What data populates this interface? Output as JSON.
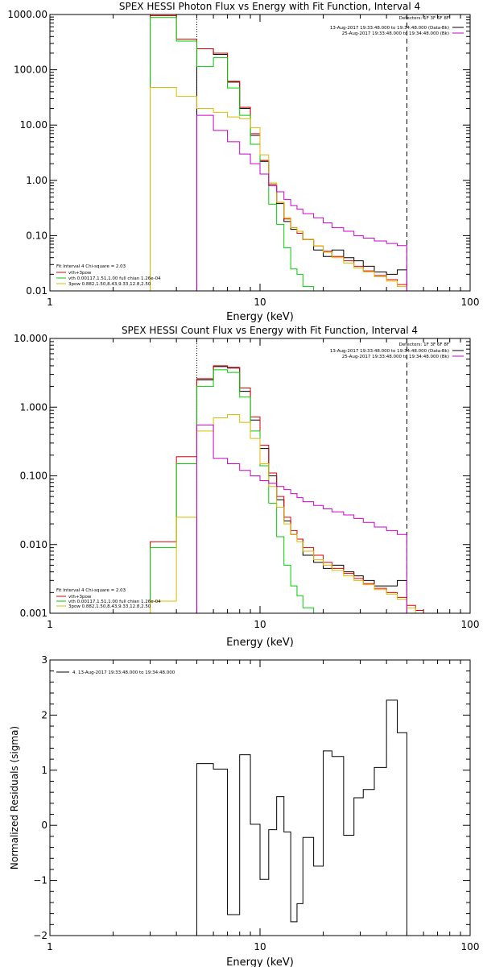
{
  "chart_data": [
    {
      "type": "line",
      "title": "SPEX HESSI Photon Flux vs Energy with Fit Function, Interval 4",
      "xlabel": "Energy (keV)",
      "ylabel": "",
      "xscale": "log",
      "yscale": "log",
      "xlim": [
        1,
        100
      ],
      "ylim": [
        0.01,
        1000
      ],
      "xticks": [
        "1",
        "10",
        "100"
      ],
      "yticks": [
        "0.01",
        "0.10",
        "1.00",
        "10.00",
        "100.00",
        "1000.00"
      ],
      "vlines": [
        {
          "x": 5.0,
          "style": "dotted"
        },
        {
          "x": 50.0,
          "style": "dashed"
        }
      ],
      "legend_top_right": [
        {
          "label": "Detectors: 1F 3F 6F 8F",
          "color": "#000000"
        },
        {
          "label": "13-Aug-2017 19:33:48.000 to 19:34:48.000 (Data-Bk)",
          "color": "#000000"
        },
        {
          "label": "25-Aug-2017 19:33:48.000 to 19:34:48.000 (Bk)",
          "color": "#cc00cc"
        }
      ],
      "legend_bottom_left": [
        {
          "label": "Fit Interval 4   Chi-square = 2.03",
          "color": "#000000"
        },
        {
          "label": "vth+3pow",
          "color": "#dd0000"
        },
        {
          "label": "vth 0.00117,1.51,1.00  full chian 1.26e-04",
          "color": "#00cc00"
        },
        {
          "label": "3pow 0.882,1.50,8.43,9.33,12.8,2.50",
          "color": "#ddbb00"
        }
      ],
      "series": [
        {
          "name": "Data-Bk",
          "color": "#000000",
          "edges": [
            5,
            6,
            7,
            8,
            9,
            10,
            11,
            12,
            13,
            14,
            15,
            16,
            18,
            20,
            22,
            25,
            28,
            31,
            35,
            40,
            45,
            50
          ],
          "values": [
            240,
            190,
            60,
            20,
            6.5,
            2.2,
            0.8,
            0.38,
            0.18,
            0.13,
            0.12,
            0.085,
            0.055,
            0.042,
            0.055,
            0.04,
            0.035,
            0.028,
            0.022,
            0.02,
            0.024
          ]
        },
        {
          "name": "vth+3pow",
          "color": "#dd0000",
          "edges": [
            3,
            4,
            5,
            6,
            7,
            8,
            9,
            10,
            11,
            12,
            13,
            14,
            15,
            16,
            18,
            20,
            22,
            25,
            28,
            31,
            35,
            40,
            45,
            50
          ],
          "values": [
            950,
            360,
            240,
            200,
            62,
            21,
            7.0,
            2.3,
            0.85,
            0.4,
            0.2,
            0.14,
            0.11,
            0.085,
            0.065,
            0.052,
            0.042,
            0.035,
            0.028,
            0.023,
            0.019,
            0.016,
            0.013
          ]
        },
        {
          "name": "vth",
          "color": "#00cc00",
          "edges": [
            3,
            4,
            5,
            6,
            7,
            8,
            9,
            10,
            11,
            12,
            13,
            14,
            15,
            16,
            18
          ],
          "values": [
            880,
            330,
            115,
            165,
            47,
            15,
            4.5,
            1.3,
            0.37,
            0.16,
            0.06,
            0.025,
            0.02,
            0.012
          ]
        },
        {
          "name": "3pow",
          "color": "#ddbb00",
          "edges": [
            3,
            4,
            5,
            6,
            7,
            8,
            9,
            10,
            11,
            12,
            13,
            14,
            15,
            16,
            18,
            20,
            22,
            25,
            28,
            31,
            35,
            40,
            45,
            50
          ],
          "values": [
            48,
            33,
            20,
            17,
            14,
            13,
            9.0,
            2.9,
            0.9,
            0.4,
            0.21,
            0.14,
            0.12,
            0.085,
            0.065,
            0.05,
            0.04,
            0.032,
            0.026,
            0.022,
            0.018,
            0.015,
            0.012
          ]
        },
        {
          "name": "Bk",
          "color": "#cc00cc",
          "edges": [
            5,
            6,
            7,
            8,
            9,
            10,
            11,
            12,
            13,
            14,
            15,
            16,
            18,
            20,
            22,
            25,
            28,
            31,
            35,
            40,
            45,
            50
          ],
          "values": [
            15,
            8,
            5,
            3,
            2.0,
            1.3,
            0.8,
            0.62,
            0.45,
            0.35,
            0.3,
            0.25,
            0.21,
            0.17,
            0.14,
            0.12,
            0.1,
            0.09,
            0.08,
            0.072,
            0.066
          ]
        }
      ]
    },
    {
      "type": "line",
      "title": "SPEX HESSI Count Flux vs Energy with Fit Function, Interval 4",
      "xlabel": "Energy (keV)",
      "ylabel": "",
      "xscale": "log",
      "yscale": "log",
      "xlim": [
        1,
        100
      ],
      "ylim": [
        0.001,
        10
      ],
      "xticks": [
        "1",
        "10",
        "100"
      ],
      "yticks": [
        "0.001",
        "0.010",
        "0.100",
        "1.000",
        "10.000"
      ],
      "vlines": [
        {
          "x": 5.0,
          "style": "dotted"
        },
        {
          "x": 50.0,
          "style": "dashed"
        }
      ],
      "legend_top_right": [
        {
          "label": "Detectors: 1F 3F 6F 8F",
          "color": "#000000"
        },
        {
          "label": "13-Aug-2017 19:33:48.000 to 19:34:48.000 (Data-Bk)",
          "color": "#000000"
        },
        {
          "label": "25-Aug-2017 19:33:48.000 to 19:34:48.000 (Bk)",
          "color": "#cc00cc"
        }
      ],
      "legend_bottom_left": [
        {
          "label": "Fit Interval 4   Chi-square = 2.03",
          "color": "#000000"
        },
        {
          "label": "vth+3pow",
          "color": "#dd0000"
        },
        {
          "label": "vth 0.00117,1.51,1.00  full chian 1.26e-04",
          "color": "#00cc00"
        },
        {
          "label": "3pow 0.882,1.50,8.43,9.33,12.8,2.50",
          "color": "#ddbb00"
        }
      ],
      "series": [
        {
          "name": "Data-Bk",
          "color": "#000000",
          "edges": [
            5,
            6,
            7,
            8,
            9,
            10,
            11,
            12,
            13,
            14,
            15,
            16,
            18,
            20,
            22,
            25,
            28,
            31,
            35,
            40,
            45,
            50
          ],
          "values": [
            2.5,
            3.9,
            3.7,
            1.7,
            0.65,
            0.25,
            0.1,
            0.045,
            0.022,
            0.014,
            0.012,
            0.007,
            0.0055,
            0.0045,
            0.005,
            0.004,
            0.0035,
            0.003,
            0.0025,
            0.0025,
            0.003
          ]
        },
        {
          "name": "vth+3pow",
          "color": "#dd0000",
          "edges": [
            3,
            4,
            5,
            6,
            7,
            8,
            9,
            10,
            11,
            12,
            13,
            14,
            15,
            16,
            18,
            20,
            22,
            25,
            28,
            31,
            35,
            40,
            45,
            50,
            55,
            60
          ],
          "values": [
            0.011,
            0.19,
            2.6,
            4.0,
            3.8,
            1.9,
            0.72,
            0.28,
            0.11,
            0.05,
            0.025,
            0.016,
            0.012,
            0.009,
            0.007,
            0.0055,
            0.0045,
            0.0038,
            0.0032,
            0.0027,
            0.0023,
            0.002,
            0.0017,
            0.0013,
            0.0011
          ]
        },
        {
          "name": "vth",
          "color": "#00cc00",
          "edges": [
            3,
            4,
            5,
            6,
            7,
            8,
            9,
            10,
            11,
            12,
            13,
            14,
            15,
            16,
            18
          ],
          "values": [
            0.009,
            0.15,
            2.0,
            3.5,
            3.2,
            1.4,
            0.45,
            0.14,
            0.04,
            0.013,
            0.005,
            0.0025,
            0.0018,
            0.0012
          ]
        },
        {
          "name": "3pow",
          "color": "#ddbb00",
          "edges": [
            3,
            4,
            5,
            6,
            7,
            8,
            9,
            10,
            11,
            12,
            13,
            14,
            15,
            16,
            18,
            20,
            22,
            25,
            28,
            31,
            35,
            40,
            45,
            50,
            55,
            60
          ],
          "values": [
            0.0015,
            0.025,
            0.45,
            0.7,
            0.78,
            0.6,
            0.35,
            0.15,
            0.07,
            0.035,
            0.02,
            0.014,
            0.011,
            0.008,
            0.006,
            0.005,
            0.0042,
            0.0035,
            0.003,
            0.0026,
            0.0022,
            0.0019,
            0.0016,
            0.0012,
            0.001
          ]
        },
        {
          "name": "Bk",
          "color": "#cc00cc",
          "edges": [
            5,
            6,
            7,
            8,
            9,
            10,
            11,
            12,
            13,
            14,
            15,
            16,
            18,
            20,
            22,
            25,
            28,
            31,
            35,
            40,
            45,
            50
          ],
          "values": [
            0.55,
            0.18,
            0.15,
            0.12,
            0.1,
            0.085,
            0.078,
            0.07,
            0.063,
            0.055,
            0.048,
            0.042,
            0.037,
            0.033,
            0.03,
            0.027,
            0.024,
            0.021,
            0.018,
            0.016,
            0.014
          ]
        }
      ]
    },
    {
      "type": "line",
      "title": "",
      "xlabel": "Energy (keV)",
      "ylabel": "Normalized Residuals (sigma)",
      "xscale": "log",
      "yscale": "linear",
      "xlim": [
        1,
        100
      ],
      "ylim": [
        -2,
        3
      ],
      "xticks": [
        "1",
        "10",
        "100"
      ],
      "yticks": [
        "-2",
        "-1",
        "0",
        "1",
        "2",
        "3"
      ],
      "legend": [
        {
          "label": "4. 13-Aug-2017 19:33:48.000 to 19:34:48.000",
          "color": "#000000"
        }
      ],
      "series": [
        {
          "name": "4. 13-Aug-2017 19:33:48.000 to 19:34:48.000",
          "color": "#000000",
          "edges": [
            5,
            6,
            7,
            8,
            9,
            10,
            11,
            12,
            13,
            14,
            15,
            16,
            18,
            20,
            22,
            25,
            28,
            31,
            35,
            40,
            45,
            50
          ],
          "values": [
            1.12,
            1.02,
            -1.62,
            1.28,
            0.02,
            -0.98,
            -0.08,
            0.52,
            -0.12,
            -1.75,
            -1.42,
            -0.22,
            -0.74,
            1.35,
            1.25,
            -0.18,
            0.5,
            0.65,
            1.05,
            2.27,
            1.68
          ]
        }
      ]
    }
  ]
}
